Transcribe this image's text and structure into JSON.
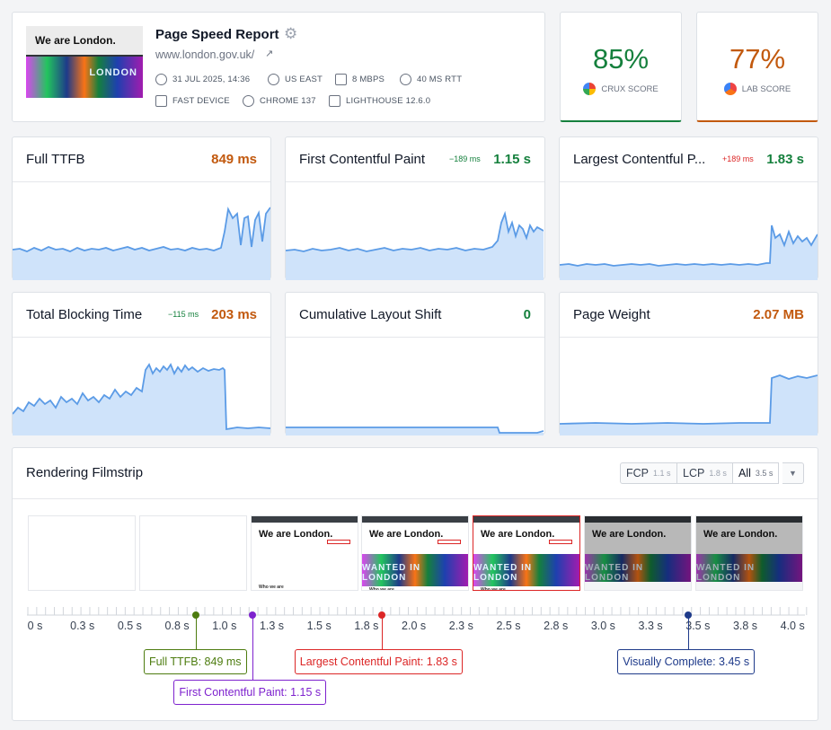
{
  "header": {
    "title": "Page Speed Report",
    "url": "www.london.gov.uk/",
    "thumbnail_headline": "We are London.",
    "thumbnail_art_text": "LONDON",
    "meta": [
      {
        "icon": "clock-icon",
        "text": "31 JUL 2025, 14:36"
      },
      {
        "icon": "globe-icon",
        "text": "US EAST"
      },
      {
        "icon": "bandwidth-icon",
        "text": "8 MBPS"
      },
      {
        "icon": "latency-icon",
        "text": "40 MS RTT"
      },
      {
        "icon": "device-icon",
        "text": "FAST DEVICE"
      },
      {
        "icon": "chrome-icon",
        "text": "CHROME 137"
      },
      {
        "icon": "lighthouse-icon",
        "text": "LIGHTHOUSE 12.6.0"
      }
    ]
  },
  "scores": {
    "crux": {
      "value": "85%",
      "label": "CRUX SCORE",
      "color": "#15803d"
    },
    "lab": {
      "value": "77%",
      "label": "LAB SCORE",
      "color": "#c2590e"
    }
  },
  "metrics": [
    {
      "title": "Full TTFB",
      "delta": "",
      "value": "849 ms",
      "status": "orange"
    },
    {
      "title": "First Contentful Paint",
      "delta": "−189 ms",
      "delta_status": "green",
      "value": "1.15 s",
      "status": "green"
    },
    {
      "title": "Largest Contentful P...",
      "delta": "+189 ms",
      "delta_status": "red",
      "value": "1.83 s",
      "status": "green"
    },
    {
      "title": "Total Blocking Time",
      "delta": "−115 ms",
      "delta_status": "green",
      "value": "203 ms",
      "status": "orange"
    },
    {
      "title": "Cumulative Layout Shift",
      "delta": "",
      "value": "0",
      "status": "green"
    },
    {
      "title": "Page Weight",
      "delta": "",
      "value": "2.07 MB",
      "status": "orange"
    }
  ],
  "filmstrip": {
    "title": "Rendering Filmstrip",
    "filters": [
      {
        "label": "FCP",
        "value": "1.1 s",
        "active": false
      },
      {
        "label": "LCP",
        "value": "1.8 s",
        "active": false
      },
      {
        "label": "All",
        "value": "3.5 s",
        "active": true
      }
    ],
    "frame_headline": "We are London.",
    "frame_art_text": "WANTED IN LONDON",
    "frame_subhead": "Who we are",
    "ticks": [
      "0 s",
      "0.3 s",
      "0.5 s",
      "0.8 s",
      "1.0 s",
      "1.3 s",
      "1.5 s",
      "1.8 s",
      "2.0 s",
      "2.3 s",
      "2.5 s",
      "2.8 s",
      "3.0 s",
      "3.3 s",
      "3.5 s",
      "3.8 s",
      "4.0 s"
    ],
    "callouts": [
      {
        "text": "Full TTFB: 849 ms",
        "time_s": 0.849,
        "color": "#4d7c0f"
      },
      {
        "text": "First Contentful Paint: 1.15 s",
        "time_s": 1.15,
        "color": "#7e22ce"
      },
      {
        "text": "Largest Contentful Paint: 1.83 s",
        "time_s": 1.83,
        "color": "#dc2626"
      },
      {
        "text": "Visually Complete: 3.45 s",
        "time_s": 3.45,
        "color": "#1e3a8a"
      }
    ]
  }
}
